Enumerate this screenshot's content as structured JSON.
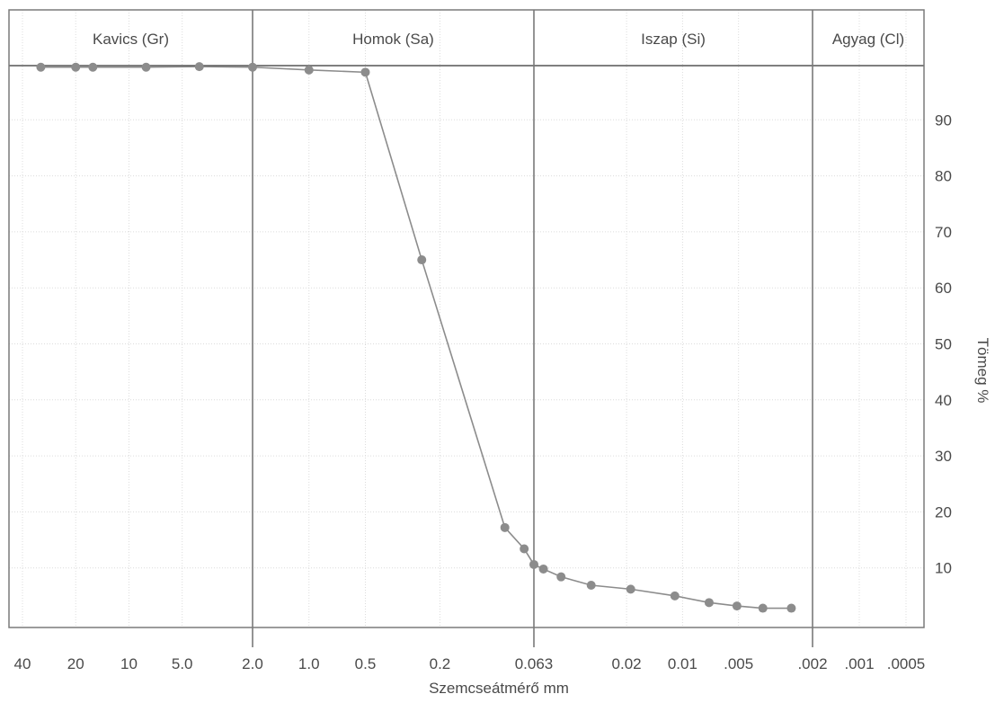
{
  "chart_data": {
    "type": "line",
    "title": "",
    "xlabel": "Szemcseátmérő mm",
    "ylabel": "Tömeg %",
    "x_scale": "log",
    "x_reversed": true,
    "xlim": [
      40,
      0.0005
    ],
    "ylim": [
      0,
      100
    ],
    "grid": true,
    "x_tick_labels": [
      "40",
      "20",
      "10",
      "5.0",
      "2.0",
      "1.0",
      "0.5",
      "0.2",
      "0.063",
      "0.02",
      "0.01",
      ".005",
      ".002",
      ".001",
      ".0005"
    ],
    "y_ticks": [
      10,
      20,
      30,
      40,
      50,
      60,
      70,
      80,
      90
    ],
    "zones": [
      "Kavics (Gr)",
      "Homok (Sa)",
      "Iszap (Si)",
      "Agyag (Cl)"
    ],
    "zone_boundaries": [
      2.0,
      0.063,
      0.002
    ],
    "series": [
      {
        "name": "",
        "color": "#8c8c8c",
        "x": [
          31.5,
          20,
          16,
          8,
          4,
          2,
          1,
          0.5,
          0.25,
          0.09,
          0.071,
          0.063,
          0.056,
          0.045,
          0.031,
          0.019,
          0.011,
          0.0072,
          0.0051,
          0.0037,
          0.0026
        ],
        "y": [
          99.4,
          99.4,
          99.4,
          99.4,
          99.5,
          99.4,
          98.9,
          98.5,
          65,
          17.2,
          13.4,
          10.6,
          9.8,
          8.4,
          6.9,
          6.2,
          5.0,
          3.8,
          3.2,
          2.8,
          2.8
        ]
      }
    ]
  }
}
